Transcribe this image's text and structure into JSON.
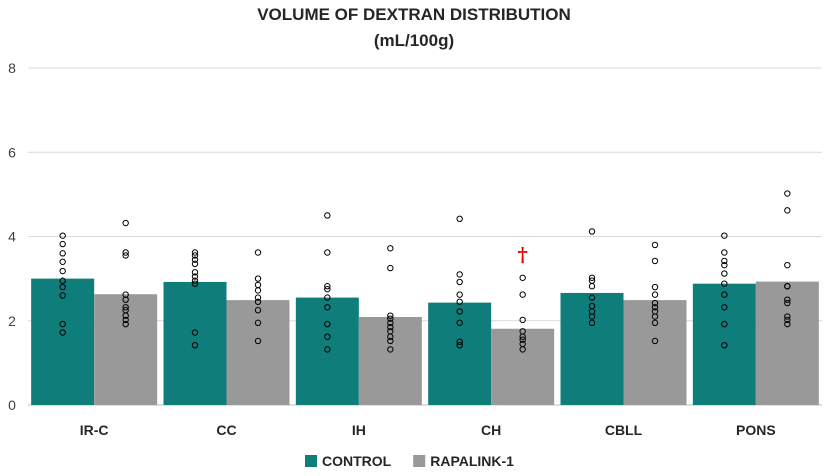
{
  "chart_data": {
    "type": "bar",
    "title": "VOLUME OF DEXTRAN  DISTRIBUTION",
    "subtitle": "(mL/100g)",
    "xlabel": "",
    "ylabel": "",
    "ylim": [
      0,
      8
    ],
    "yticks": [
      "0",
      "2",
      "4",
      "6",
      "8"
    ],
    "grid": true,
    "legend_position": "bottom",
    "categories": [
      "IR-C",
      "CC",
      "IH",
      "CH",
      "CBLL",
      "PONS"
    ],
    "series": [
      {
        "name": "CONTROL",
        "color": "#0f7d7a",
        "values": [
          3.0,
          2.92,
          2.55,
          2.43,
          2.66,
          2.88
        ],
        "points": [
          [
            4.02,
            3.82,
            3.6,
            3.4,
            3.18,
            2.95,
            2.8,
            2.6,
            1.92,
            1.72
          ],
          [
            3.62,
            3.55,
            3.45,
            3.35,
            3.15,
            3.05,
            2.95,
            2.88,
            1.72,
            1.42
          ],
          [
            4.5,
            3.62,
            2.82,
            2.75,
            2.55,
            2.32,
            1.92,
            1.62,
            1.32
          ],
          [
            4.42,
            3.1,
            2.92,
            2.62,
            2.45,
            2.22,
            1.95,
            1.5,
            1.42
          ],
          [
            4.12,
            3.02,
            2.95,
            2.82,
            2.55,
            2.35,
            2.22,
            2.1,
            1.95
          ],
          [
            4.02,
            3.62,
            3.42,
            3.32,
            3.12,
            2.88,
            2.62,
            2.32,
            1.92,
            1.42
          ]
        ]
      },
      {
        "name": "RAPALINK-1",
        "color": "#999999",
        "values": [
          2.63,
          2.49,
          2.09,
          1.81,
          2.49,
          2.93
        ],
        "points": [
          [
            4.32,
            3.62,
            3.55,
            2.62,
            2.5,
            2.32,
            2.25,
            2.12,
            2.02,
            1.92
          ],
          [
            3.62,
            3.0,
            2.85,
            2.72,
            2.55,
            2.45,
            2.25,
            1.95,
            1.52
          ],
          [
            3.72,
            3.25,
            2.12,
            2.05,
            1.95,
            1.85,
            1.75,
            1.62,
            1.52,
            1.32
          ],
          [
            3.02,
            2.62,
            2.02,
            1.75,
            1.62,
            1.55,
            1.45,
            1.32
          ],
          [
            3.8,
            3.42,
            2.8,
            2.62,
            2.42,
            2.32,
            2.22,
            2.1,
            1.95,
            1.52
          ],
          [
            5.02,
            4.62,
            3.32,
            2.82,
            2.82,
            2.5,
            2.42,
            2.1,
            2.02,
            1.92
          ]
        ]
      }
    ],
    "annotations": [
      {
        "text": "†",
        "category": "CH",
        "series": "RAPALINK-1",
        "y": 3.55,
        "color": "#e00000"
      }
    ]
  }
}
